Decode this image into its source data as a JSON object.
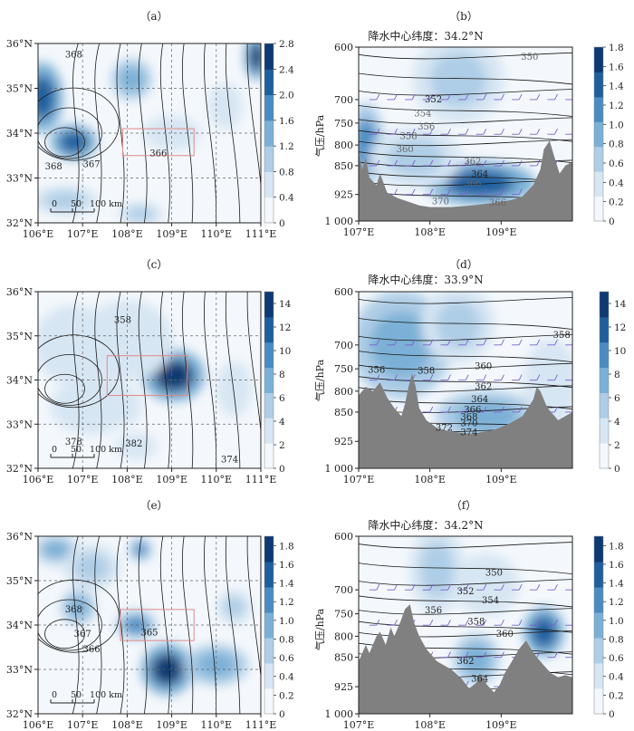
{
  "colors": {
    "fill_light": "#f4f8fc",
    "fill_scale": [
      "#f4f8fc",
      "#d7e6f3",
      "#aecde6",
      "#7bb0d6",
      "#4a8cc2",
      "#1f5f9e",
      "#0d3a72"
    ],
    "terrain": "#808080",
    "contour": "#1a1a1a",
    "box": "#e08a8a",
    "barb": "#7a5fd0"
  },
  "chart_data": [
    {
      "id": "a",
      "label": "（a）",
      "type": "heatmap",
      "kind": "map",
      "xlim": [
        106,
        111
      ],
      "ylim": [
        32,
        36
      ],
      "x_ticks": [
        "106°E",
        "107°E",
        "108°E",
        "109°E",
        "110°E",
        "111°E"
      ],
      "y_ticks": [
        "32°N",
        "33°N",
        "34°N",
        "35°N",
        "36°N"
      ],
      "colorbar": {
        "vmin": 0,
        "vmax": 2.8,
        "ticks": [
          "0",
          "0.4",
          "0.8",
          "1.2",
          "1.6",
          "2.0",
          "2.4",
          "2.8"
        ]
      },
      "blobs": [
        {
          "lon": 106.1,
          "lat": 34.8,
          "value": 2.2,
          "rx": 0.35,
          "ry": 0.6
        },
        {
          "lon": 106.8,
          "lat": 33.8,
          "value": 2.4,
          "rx": 0.4,
          "ry": 0.3
        },
        {
          "lon": 108.1,
          "lat": 35.2,
          "value": 1.4,
          "rx": 0.35,
          "ry": 0.35
        },
        {
          "lon": 110.9,
          "lat": 35.7,
          "value": 2.6,
          "rx": 0.2,
          "ry": 0.4
        },
        {
          "lon": 106.6,
          "lat": 32.5,
          "value": 1.0,
          "rx": 0.6,
          "ry": 0.25
        },
        {
          "lon": 108.3,
          "lat": 32.2,
          "value": 0.8,
          "rx": 0.4,
          "ry": 0.2
        },
        {
          "lon": 109.0,
          "lat": 34.0,
          "value": 0.5,
          "rx": 0.5,
          "ry": 0.3
        },
        {
          "lon": 110.2,
          "lat": 34.6,
          "value": 0.6,
          "rx": 0.3,
          "ry": 0.4
        }
      ],
      "contour_labels": [
        {
          "text": "368",
          "lon": 106.8,
          "lat": 35.75
        },
        {
          "text": "368",
          "lon": 106.35,
          "lat": 33.25
        },
        {
          "text": "367",
          "lon": 107.2,
          "lat": 33.3
        },
        {
          "text": "366",
          "lon": 108.7,
          "lat": 33.55
        }
      ],
      "box": {
        "lon": [
          107.9,
          109.5
        ],
        "lat": [
          33.5,
          34.1
        ]
      },
      "scale_labels": [
        "0",
        "50",
        "100 km"
      ]
    },
    {
      "id": "b",
      "label": "（b）",
      "type": "heatmap",
      "kind": "section",
      "title": "降水中心纬度：34.2°N",
      "ylabel": "气压/hPa",
      "xlim": [
        107,
        110
      ],
      "plim": [
        1000,
        600
      ],
      "x_ticks": [
        "107°E",
        "108°E",
        "109°E"
      ],
      "y_ticks": [
        600,
        700,
        750,
        800,
        850,
        925,
        1000
      ],
      "y_tick_labels": [
        "600",
        "700",
        "750",
        "800",
        "850",
        "925",
        "1 000"
      ],
      "colorbar": {
        "vmin": 0,
        "vmax": 1.8,
        "ticks": [
          "0",
          "0.2",
          "0.4",
          "0.6",
          "0.8",
          "1.0",
          "1.2",
          "1.4",
          "1.6",
          "1.8"
        ]
      },
      "terrain": [
        [
          107.0,
          820
        ],
        [
          107.05,
          860
        ],
        [
          107.1,
          830
        ],
        [
          107.15,
          880
        ],
        [
          107.25,
          900
        ],
        [
          107.3,
          870
        ],
        [
          107.4,
          920
        ],
        [
          107.55,
          935
        ],
        [
          107.7,
          945
        ],
        [
          107.85,
          955
        ],
        [
          108.0,
          960
        ],
        [
          108.3,
          960
        ],
        [
          108.6,
          955
        ],
        [
          108.9,
          948
        ],
        [
          109.15,
          940
        ],
        [
          109.3,
          930
        ],
        [
          109.45,
          900
        ],
        [
          109.55,
          860
        ],
        [
          109.6,
          810
        ],
        [
          109.68,
          790
        ],
        [
          109.75,
          830
        ],
        [
          109.82,
          870
        ],
        [
          109.9,
          850
        ],
        [
          110.0,
          840
        ]
      ],
      "blobs": [
        {
          "x": 107.1,
          "p": 800,
          "value": 1.2,
          "rx": 0.2,
          "ry": 80
        },
        {
          "x": 108.7,
          "p": 895,
          "value": 1.6,
          "rx": 0.6,
          "ry": 45
        },
        {
          "x": 108.4,
          "p": 660,
          "value": 0.6,
          "rx": 0.5,
          "ry": 70
        },
        {
          "x": 107.8,
          "p": 830,
          "value": 0.5,
          "rx": 0.5,
          "ry": 60
        }
      ],
      "contour_labels": [
        {
          "text": "350",
          "x": 109.4,
          "p": 618,
          "gray": true
        },
        {
          "text": "352",
          "x": 108.05,
          "p": 700
        },
        {
          "text": "354",
          "x": 107.9,
          "p": 730,
          "gray": true
        },
        {
          "text": "356",
          "x": 107.95,
          "p": 758,
          "gray": true
        },
        {
          "text": "358",
          "x": 107.7,
          "p": 780,
          "gray": true
        },
        {
          "text": "360",
          "x": 107.65,
          "p": 810,
          "gray": true
        },
        {
          "text": "362",
          "x": 108.6,
          "p": 840,
          "gray": true
        },
        {
          "text": "364",
          "x": 108.7,
          "p": 872
        },
        {
          "text": "366",
          "x": 108.6,
          "p": 895,
          "gray": true
        },
        {
          "text": "370",
          "x": 108.15,
          "p": 945,
          "gray": true
        },
        {
          "text": "366",
          "x": 108.95,
          "p": 948,
          "gray": true
        }
      ]
    },
    {
      "id": "c",
      "label": "（c）",
      "type": "heatmap",
      "kind": "map",
      "xlim": [
        106,
        111
      ],
      "ylim": [
        32,
        36
      ],
      "x_ticks": [
        "106°E",
        "107°E",
        "108°E",
        "109°E",
        "110°E",
        "111°E"
      ],
      "y_ticks": [
        "32°N",
        "33°N",
        "34°N",
        "35°N",
        "36°N"
      ],
      "colorbar": {
        "vmin": 0,
        "vmax": 15,
        "ticks": [
          "0",
          "2",
          "4",
          "6",
          "8",
          "10",
          "12",
          "14"
        ]
      },
      "blobs": [
        {
          "lon": 109.05,
          "lat": 34.1,
          "value": 14,
          "rx": 0.55,
          "ry": 0.45
        },
        {
          "lon": 108.0,
          "lat": 34.9,
          "value": 3,
          "rx": 0.8,
          "ry": 0.7
        },
        {
          "lon": 106.8,
          "lat": 34.8,
          "value": 3,
          "rx": 0.7,
          "ry": 0.7
        },
        {
          "lon": 107.3,
          "lat": 33.4,
          "value": 2.5,
          "rx": 0.8,
          "ry": 0.5
        },
        {
          "lon": 108.2,
          "lat": 32.5,
          "value": 2,
          "rx": 0.6,
          "ry": 0.4
        },
        {
          "lon": 110.4,
          "lat": 33.8,
          "value": 1.5,
          "rx": 0.5,
          "ry": 0.8
        }
      ],
      "contour_labels": [
        {
          "text": "358",
          "lon": 107.9,
          "lat": 35.35
        },
        {
          "text": "378",
          "lon": 106.8,
          "lat": 32.6
        },
        {
          "text": "382",
          "lon": 108.15,
          "lat": 32.55
        },
        {
          "text": "374",
          "lon": 110.3,
          "lat": 32.2
        }
      ],
      "box": {
        "lon": [
          107.55,
          109.35
        ],
        "lat": [
          33.65,
          34.55
        ]
      },
      "scale_labels": [
        "0",
        "50",
        "100 km"
      ]
    },
    {
      "id": "d",
      "label": "（d）",
      "type": "heatmap",
      "kind": "section",
      "title": "降水中心纬度：33.9°N",
      "ylabel": "气压/hPa",
      "xlim": [
        107,
        110
      ],
      "plim": [
        1000,
        600
      ],
      "x_ticks": [
        "107°E",
        "108°E",
        "109°E"
      ],
      "y_ticks": [
        600,
        700,
        750,
        800,
        850,
        925,
        1000
      ],
      "y_tick_labels": [
        "600",
        "700",
        "750",
        "800",
        "850",
        "925",
        "1 000"
      ],
      "colorbar": {
        "vmin": 0,
        "vmax": 15,
        "ticks": [
          "0",
          "2",
          "4",
          "6",
          "8",
          "10",
          "12",
          "14"
        ]
      },
      "terrain": [
        [
          107.0,
          810
        ],
        [
          107.1,
          790
        ],
        [
          107.2,
          800
        ],
        [
          107.3,
          780
        ],
        [
          107.4,
          815
        ],
        [
          107.5,
          840
        ],
        [
          107.6,
          860
        ],
        [
          107.65,
          830
        ],
        [
          107.7,
          790
        ],
        [
          107.75,
          760
        ],
        [
          107.8,
          790
        ],
        [
          107.85,
          840
        ],
        [
          107.95,
          870
        ],
        [
          108.1,
          890
        ],
        [
          108.3,
          900
        ],
        [
          108.6,
          905
        ],
        [
          108.9,
          895
        ],
        [
          109.1,
          880
        ],
        [
          109.3,
          860
        ],
        [
          109.45,
          820
        ],
        [
          109.5,
          790
        ],
        [
          109.55,
          800
        ],
        [
          109.65,
          840
        ],
        [
          109.8,
          870
        ],
        [
          109.9,
          860
        ],
        [
          110.0,
          850
        ]
      ],
      "blobs": [
        {
          "x": 107.6,
          "p": 700,
          "value": 8,
          "rx": 0.55,
          "ry": 90
        },
        {
          "x": 108.8,
          "p": 860,
          "value": 8,
          "rx": 0.55,
          "ry": 50
        },
        {
          "x": 108.4,
          "p": 660,
          "value": 4,
          "rx": 0.4,
          "ry": 60
        },
        {
          "x": 109.7,
          "p": 780,
          "value": 3,
          "rx": 0.3,
          "ry": 80
        }
      ],
      "contour_labels": [
        {
          "text": "358",
          "x": 109.85,
          "p": 680
        },
        {
          "text": "356",
          "x": 107.25,
          "p": 753
        },
        {
          "text": "358",
          "x": 107.95,
          "p": 755
        },
        {
          "text": "360",
          "x": 108.75,
          "p": 745
        },
        {
          "text": "362",
          "x": 108.75,
          "p": 790
        },
        {
          "text": "364",
          "x": 108.7,
          "p": 820
        },
        {
          "text": "366",
          "x": 108.6,
          "p": 845
        },
        {
          "text": "368",
          "x": 108.55,
          "p": 862
        },
        {
          "text": "370",
          "x": 108.55,
          "p": 878
        },
        {
          "text": "372",
          "x": 108.2,
          "p": 890
        },
        {
          "text": "374",
          "x": 108.55,
          "p": 902
        }
      ]
    },
    {
      "id": "e",
      "label": "（e）",
      "type": "heatmap",
      "kind": "map",
      "xlim": [
        106,
        111
      ],
      "ylim": [
        32,
        36
      ],
      "x_ticks": [
        "106°E",
        "107°E",
        "108°E",
        "109°E",
        "110°E",
        "111°E"
      ],
      "y_ticks": [
        "32°N",
        "33°N",
        "34°N",
        "35°N",
        "36°N"
      ],
      "colorbar": {
        "vmin": 0,
        "vmax": 1.9,
        "ticks": [
          "0",
          "0.2",
          "0.4",
          "0.6",
          "0.8",
          "1.0",
          "1.2",
          "1.4",
          "1.6",
          "1.8"
        ]
      },
      "blobs": [
        {
          "lon": 108.9,
          "lat": 33.0,
          "value": 1.8,
          "rx": 0.45,
          "ry": 0.45
        },
        {
          "lon": 108.3,
          "lat": 35.7,
          "value": 1.4,
          "rx": 0.2,
          "ry": 0.2
        },
        {
          "lon": 108.2,
          "lat": 34.0,
          "value": 1.2,
          "rx": 0.35,
          "ry": 0.25
        },
        {
          "lon": 106.9,
          "lat": 34.4,
          "value": 1.0,
          "rx": 0.3,
          "ry": 0.3
        },
        {
          "lon": 106.4,
          "lat": 35.7,
          "value": 0.8,
          "rx": 0.45,
          "ry": 0.3
        },
        {
          "lon": 107.2,
          "lat": 35.3,
          "value": 0.5,
          "rx": 0.5,
          "ry": 0.4
        },
        {
          "lon": 110.0,
          "lat": 33.1,
          "value": 0.9,
          "rx": 0.55,
          "ry": 0.35
        },
        {
          "lon": 110.4,
          "lat": 34.4,
          "value": 0.6,
          "rx": 0.3,
          "ry": 0.3
        }
      ],
      "contour_labels": [
        {
          "text": "368",
          "lon": 106.8,
          "lat": 34.35
        },
        {
          "text": "367",
          "lon": 107.0,
          "lat": 33.8
        },
        {
          "text": "366",
          "lon": 107.2,
          "lat": 33.45
        },
        {
          "text": "365",
          "lon": 108.5,
          "lat": 33.83
        }
      ],
      "box": {
        "lon": [
          107.85,
          109.5
        ],
        "lat": [
          33.65,
          34.35
        ]
      },
      "scale_labels": [
        "0",
        "50",
        "100 km"
      ]
    },
    {
      "id": "f",
      "label": "（f）",
      "type": "heatmap",
      "kind": "section",
      "title": "降水中心纬度：34.2°N",
      "ylabel": "气压/hPa",
      "xlim": [
        107,
        110
      ],
      "plim": [
        1000,
        600
      ],
      "x_ticks": [
        "107°E",
        "108°E",
        "109°E"
      ],
      "y_ticks": [
        600,
        700,
        750,
        800,
        850,
        925,
        1000
      ],
      "y_tick_labels": [
        "600",
        "700",
        "750",
        "800",
        "850",
        "925",
        "1 000"
      ],
      "colorbar": {
        "vmin": 0,
        "vmax": 1.9,
        "ticks": [
          "0",
          "0.2",
          "0.4",
          "0.6",
          "0.8",
          "1.0",
          "1.2",
          "1.4",
          "1.6",
          "1.8"
        ]
      },
      "terrain": [
        [
          107.0,
          860
        ],
        [
          107.05,
          840
        ],
        [
          107.1,
          820
        ],
        [
          107.15,
          840
        ],
        [
          107.25,
          800
        ],
        [
          107.3,
          790
        ],
        [
          107.38,
          820
        ],
        [
          107.45,
          780
        ],
        [
          107.5,
          800
        ],
        [
          107.58,
          770
        ],
        [
          107.65,
          740
        ],
        [
          107.72,
          730
        ],
        [
          107.78,
          770
        ],
        [
          107.85,
          800
        ],
        [
          107.95,
          830
        ],
        [
          108.1,
          860
        ],
        [
          108.3,
          880
        ],
        [
          108.45,
          905
        ],
        [
          108.55,
          930
        ],
        [
          108.65,
          915
        ],
        [
          108.7,
          890
        ],
        [
          108.8,
          920
        ],
        [
          108.9,
          940
        ],
        [
          108.98,
          920
        ],
        [
          109.05,
          890
        ],
        [
          109.15,
          860
        ],
        [
          109.25,
          830
        ],
        [
          109.35,
          810
        ],
        [
          109.42,
          830
        ],
        [
          109.5,
          850
        ],
        [
          109.6,
          870
        ],
        [
          109.7,
          890
        ],
        [
          109.8,
          900
        ],
        [
          109.9,
          895
        ],
        [
          110.0,
          900
        ]
      ],
      "blobs": [
        {
          "x": 109.6,
          "p": 790,
          "value": 1.6,
          "rx": 0.22,
          "ry": 45
        },
        {
          "x": 108.65,
          "p": 855,
          "value": 1.1,
          "rx": 0.25,
          "ry": 50
        },
        {
          "x": 108.1,
          "p": 660,
          "value": 0.5,
          "rx": 0.3,
          "ry": 70
        },
        {
          "x": 108.8,
          "p": 690,
          "value": 0.4,
          "rx": 0.35,
          "ry": 50
        }
      ],
      "contour_labels": [
        {
          "text": "350",
          "x": 108.9,
          "p": 667
        },
        {
          "text": "352",
          "x": 108.5,
          "p": 703
        },
        {
          "text": "354",
          "x": 108.85,
          "p": 722
        },
        {
          "text": "356",
          "x": 108.05,
          "p": 743
        },
        {
          "text": "358",
          "x": 108.65,
          "p": 768
        },
        {
          "text": "360",
          "x": 109.05,
          "p": 795
        },
        {
          "text": "362",
          "x": 108.5,
          "p": 860
        },
        {
          "text": "364",
          "x": 108.7,
          "p": 905
        }
      ]
    }
  ]
}
